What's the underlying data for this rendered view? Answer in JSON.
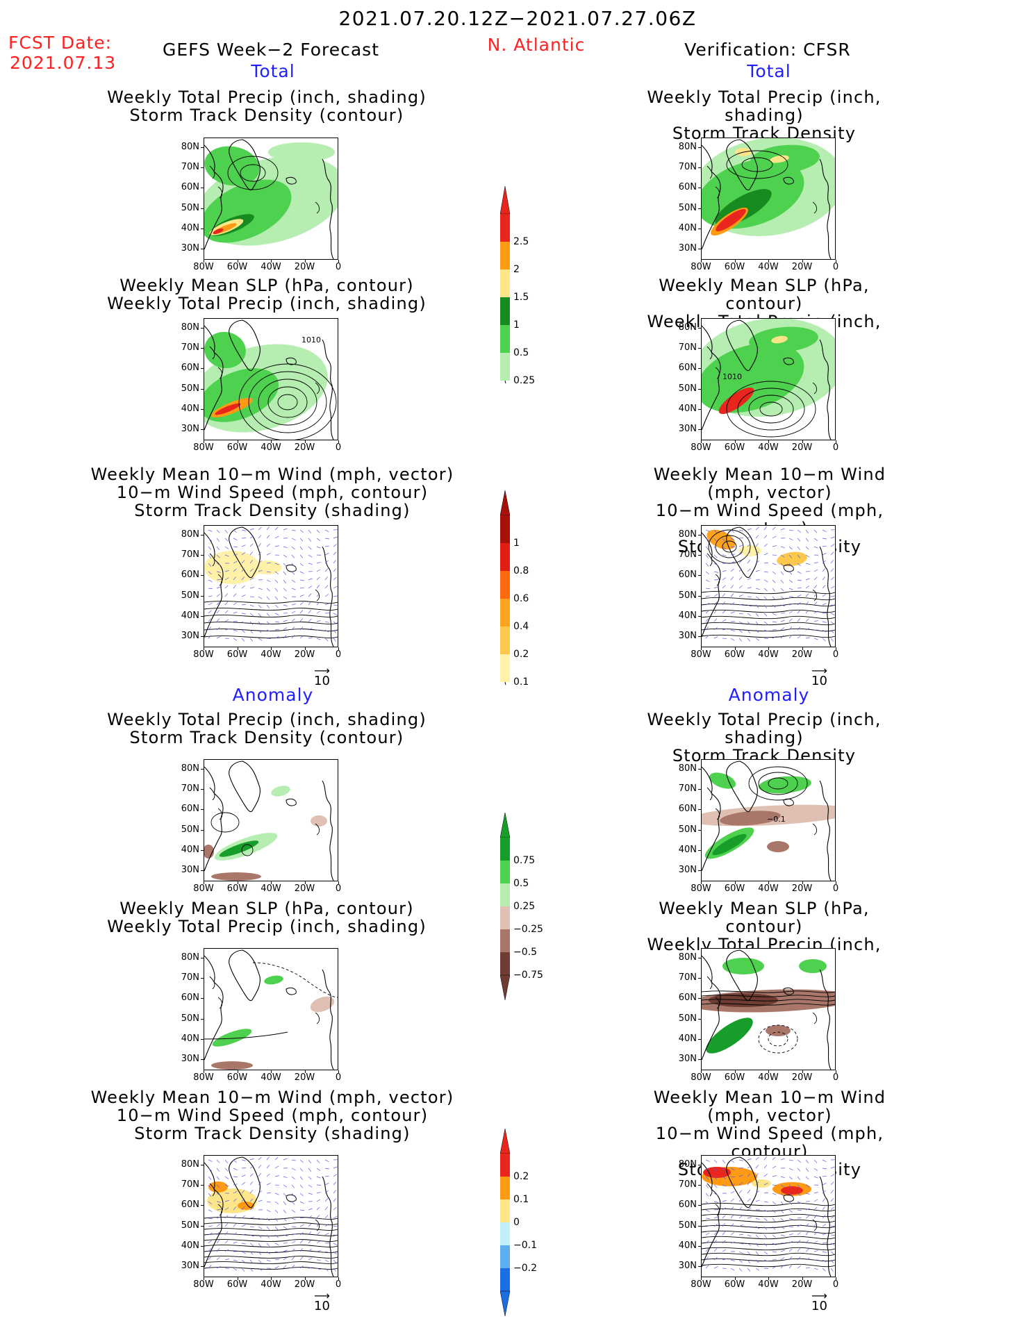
{
  "header": {
    "period": "2021.07.20.12Z−2021.07.27.06Z",
    "fcst_label": "FCST Date:",
    "fcst_date": "2021.07.13",
    "model": "GEFS Week−2 Forecast",
    "region": "N. Atlantic",
    "verification": "Verification: CFSR"
  },
  "sections": {
    "total": "Total",
    "anomaly": "Anomaly"
  },
  "panel_titles": {
    "precip_track": [
      "Weekly Total Precip (inch, shading)",
      "Storm Track Density (contour)"
    ],
    "slp_precip": [
      "Weekly Mean SLP (hPa, contour)",
      "Weekly Total Precip (inch, shading)"
    ],
    "wind_track": [
      "Weekly Mean 10−m Wind (mph, vector)",
      "10−m Wind Speed (mph, contour)",
      "Storm Track Density (shading)"
    ]
  },
  "axes": {
    "lat": [
      "80N",
      "70N",
      "60N",
      "50N",
      "40N",
      "30N"
    ],
    "lon": [
      "80W",
      "60W",
      "40W",
      "20W",
      "0"
    ]
  },
  "vector_ref": "10",
  "contour_labels": {
    "slp_fcst": "1010",
    "slp_cfsr": "1010",
    "track_anom_cfsr": "−0.1"
  },
  "colorbars": {
    "precip_total": {
      "labels": [
        "2.5",
        "2",
        "1.5",
        "1",
        "0.5",
        "0.25"
      ],
      "colors": [
        "#e8261d",
        "#ff9a14",
        "#fde68a",
        "#178b20",
        "#4ed14e",
        "#b5eeb0"
      ]
    },
    "track_total": {
      "labels": [
        "1",
        "0.8",
        "0.6",
        "0.4",
        "0.2",
        "0.1"
      ],
      "colors": [
        "#a8100a",
        "#e31d12",
        "#ff6a0e",
        "#ffa21e",
        "#fdc84c",
        "#fff1a8"
      ]
    },
    "precip_anom": {
      "labels": [
        "0.75",
        "0.5",
        "0.25",
        "−0.25",
        "−0.5",
        "−0.75"
      ],
      "colors": [
        "#179d2a",
        "#4ed14e",
        "#b5eeb0",
        "#dfc0b2",
        "#a9776a",
        "#6e3c32"
      ]
    },
    "track_anom": {
      "labels": [
        "0.2",
        "0.1",
        "0",
        "−0.1",
        "−0.2"
      ],
      "colors": [
        "#e8261d",
        "#ff9a14",
        "#fde68a",
        "#bfeff8",
        "#5caeef",
        "#1c6fe3"
      ]
    }
  }
}
